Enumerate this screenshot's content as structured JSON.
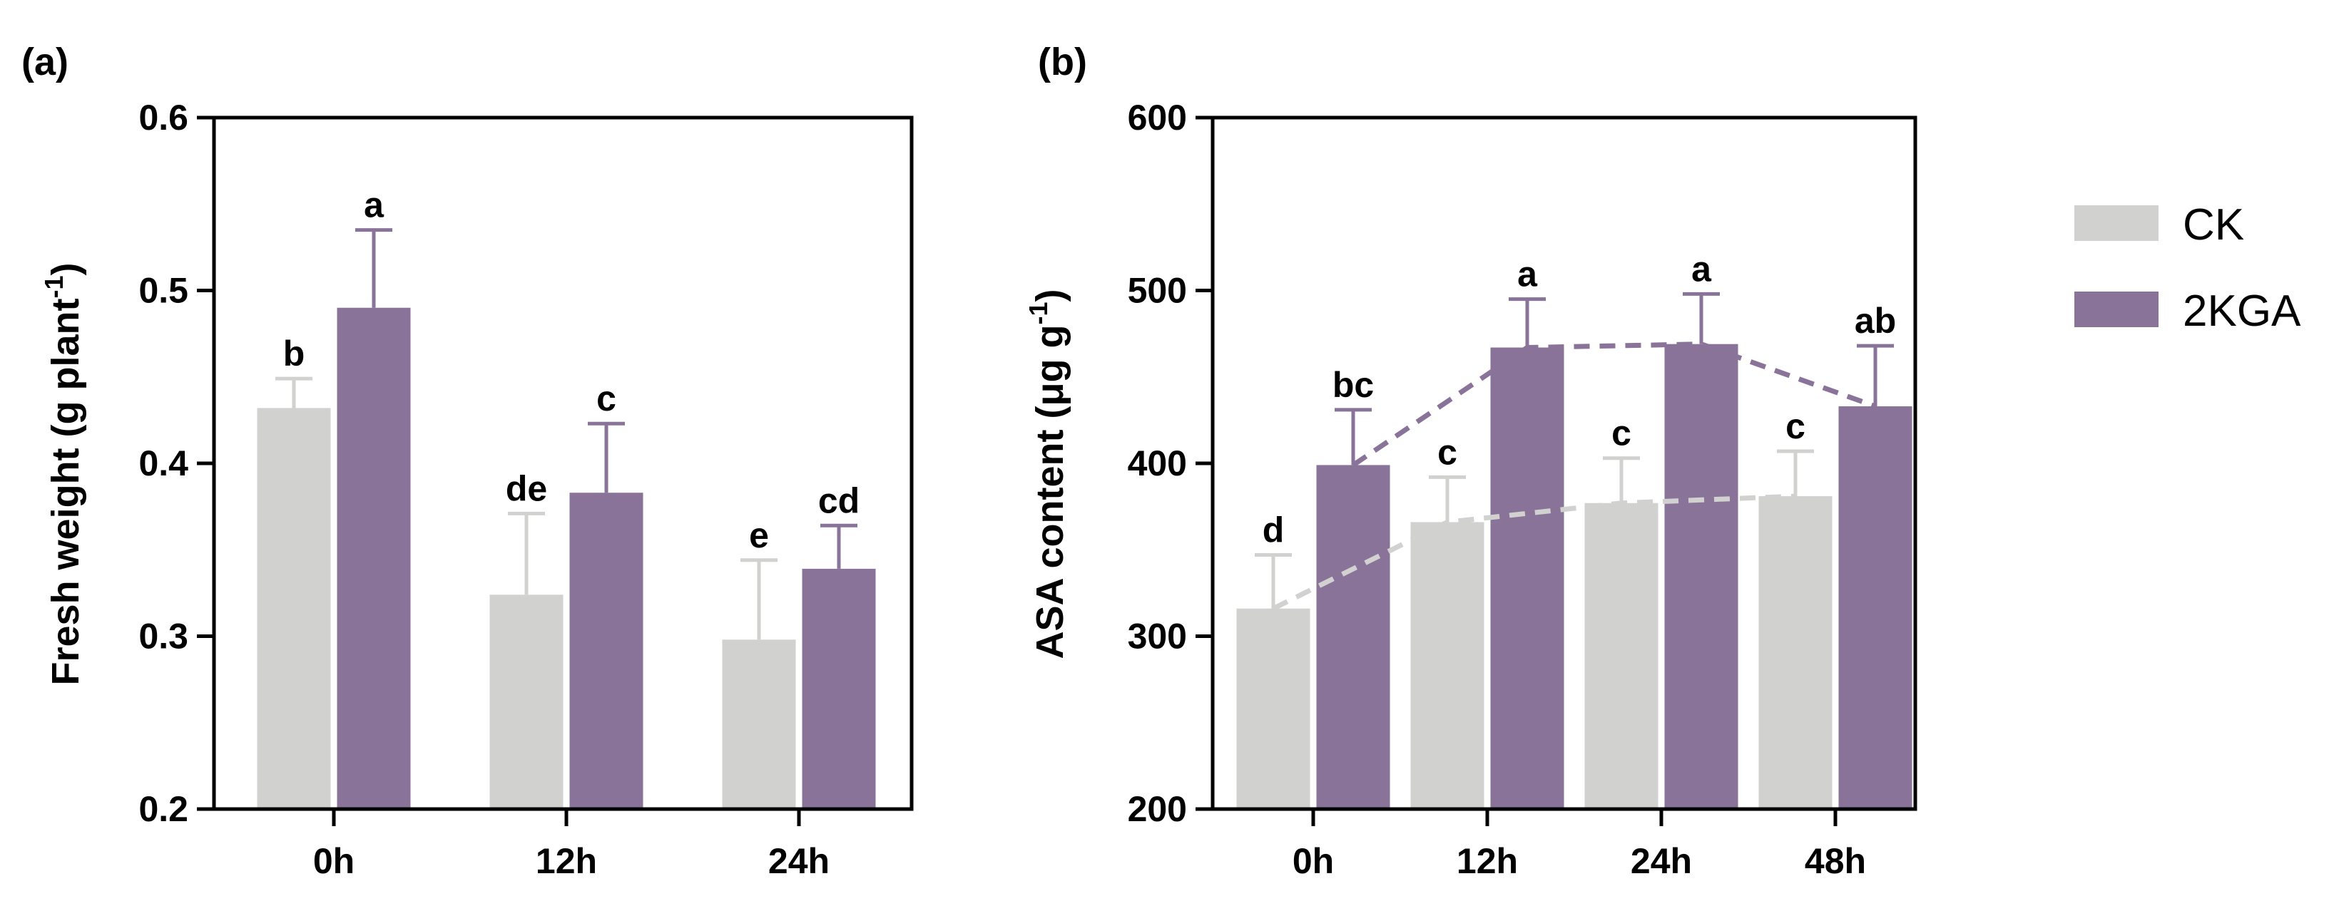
{
  "colors": {
    "CK": "#d1d1cf",
    "2KGA": "#8a7399",
    "axis": "#000000"
  },
  "legend": {
    "items": [
      {
        "label": "CK",
        "series": "CK"
      },
      {
        "label": "2KGA",
        "series": "2KGA"
      }
    ]
  },
  "chart_data": [
    {
      "panel_label": "(a)",
      "type": "bar",
      "ylabel": "Fresh weight (g plant",
      "ylabel_sup": "-1",
      "ylabel_close": ")",
      "ylim": [
        0.2,
        0.6
      ],
      "yticks": [
        0.2,
        0.3,
        0.4,
        0.5,
        0.6
      ],
      "ytick_labels": [
        "0.2",
        "0.3",
        "0.4",
        "0.5",
        "0.6"
      ],
      "categories": [
        "0h",
        "12h",
        "24h"
      ],
      "series": [
        {
          "name": "CK",
          "values": [
            0.432,
            0.324,
            0.298
          ],
          "errors": [
            0.017,
            0.047,
            0.046
          ],
          "labels": [
            "b",
            "de",
            "e"
          ]
        },
        {
          "name": "2KGA",
          "values": [
            0.49,
            0.383,
            0.339
          ],
          "errors": [
            0.045,
            0.04,
            0.025
          ],
          "labels": [
            "a",
            "c",
            "cd"
          ]
        }
      ],
      "trend_lines": false
    },
    {
      "panel_label": "(b)",
      "type": "bar",
      "ylabel": "ASA content (μg g",
      "ylabel_sup": "-1",
      "ylabel_close": ")",
      "ylim": [
        200,
        600
      ],
      "yticks": [
        200,
        300,
        400,
        500,
        600
      ],
      "ytick_labels": [
        "200",
        "300",
        "400",
        "500",
        "600"
      ],
      "categories": [
        "0h",
        "12h",
        "24h",
        "48h"
      ],
      "series": [
        {
          "name": "CK",
          "values": [
            316,
            366,
            377,
            381
          ],
          "errors": [
            31,
            26,
            26,
            26
          ],
          "labels": [
            "d",
            "c",
            "c",
            "c"
          ]
        },
        {
          "name": "2KGA",
          "values": [
            399,
            467,
            469,
            433
          ],
          "errors": [
            32,
            28,
            29,
            35
          ],
          "labels": [
            "bc",
            "a",
            "a",
            "ab"
          ]
        }
      ],
      "trend_lines": true
    }
  ]
}
